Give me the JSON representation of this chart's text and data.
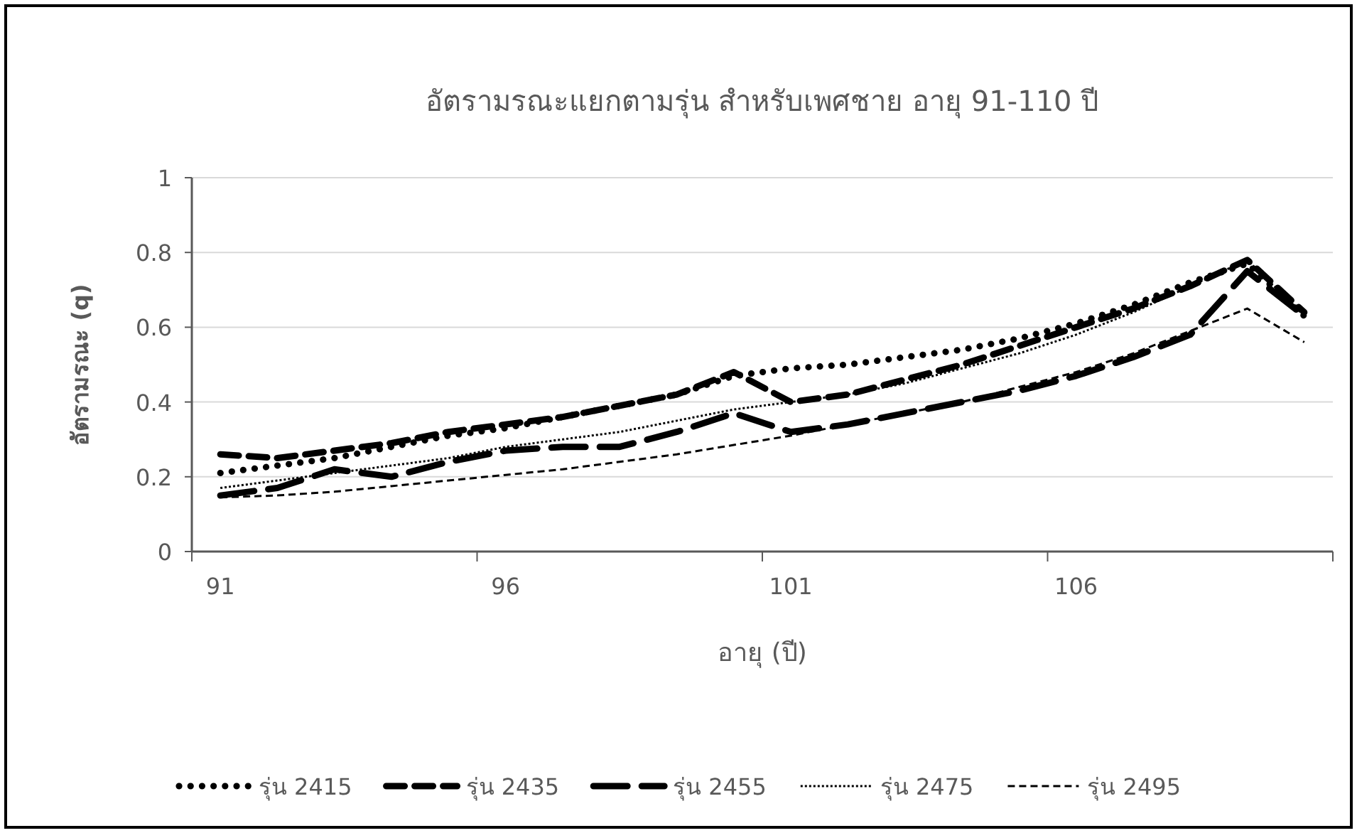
{
  "chart_data": {
    "type": "line",
    "title": "อัตรามรณะแยกตามรุ่น สำหรับเพศชาย อายุ 91-110 ปี",
    "xlabel": "อายุ (ปี)",
    "ylabel": "อัตรามรณะ (q)",
    "categories": [
      "91",
      null,
      null,
      null,
      null,
      "96",
      null,
      null,
      null,
      null,
      "101",
      null,
      null,
      null,
      null,
      "106",
      null,
      null,
      null,
      null
    ],
    "ylim": [
      0,
      1
    ],
    "yticks": [
      0,
      0.2,
      0.4,
      0.6,
      0.8,
      1
    ],
    "grid": "y",
    "legend": "bottom",
    "series": [
      {
        "name": "รุ่น 2415",
        "color": "#000000",
        "line_style": "dotted",
        "values": [
          0.21,
          0.23,
          0.25,
          0.28,
          0.31,
          0.33,
          0.36,
          0.39,
          0.42,
          0.47,
          0.49,
          0.5,
          0.52,
          0.54,
          0.57,
          0.61,
          0.66,
          0.72,
          0.77,
          0.63
        ]
      },
      {
        "name": "รุ่น 2435",
        "color": "#000000",
        "line_style": "dashed",
        "values": [
          0.26,
          0.25,
          0.27,
          0.29,
          0.32,
          0.34,
          0.36,
          0.39,
          0.42,
          0.48,
          0.4,
          0.42,
          0.46,
          0.5,
          0.55,
          0.6,
          0.65,
          0.71,
          0.78,
          0.64
        ]
      },
      {
        "name": "รุ่น 2455",
        "color": "#000000",
        "line_style": "dashed",
        "values": [
          0.15,
          0.17,
          0.22,
          0.2,
          0.24,
          0.27,
          0.28,
          0.28,
          0.32,
          0.37,
          0.32,
          0.34,
          0.37,
          0.4,
          0.43,
          0.47,
          0.52,
          0.58,
          0.75,
          0.63
        ]
      },
      {
        "name": "รุ่น 2475",
        "color": "#000000",
        "line_style": "dotted",
        "values": [
          0.17,
          0.19,
          0.21,
          0.23,
          0.25,
          0.28,
          0.3,
          0.32,
          0.35,
          0.38,
          0.4,
          0.42,
          0.45,
          0.49,
          0.53,
          0.58,
          0.64,
          0.71,
          0.78,
          0.63
        ]
      },
      {
        "name": "รุ่น 2495",
        "color": "#000000",
        "line_style": "dashed",
        "values": [
          0.145,
          0.15,
          0.16,
          0.175,
          0.19,
          0.205,
          0.22,
          0.24,
          0.26,
          0.285,
          0.31,
          0.34,
          0.37,
          0.4,
          0.44,
          0.48,
          0.53,
          0.59,
          0.65,
          0.56
        ]
      }
    ]
  }
}
